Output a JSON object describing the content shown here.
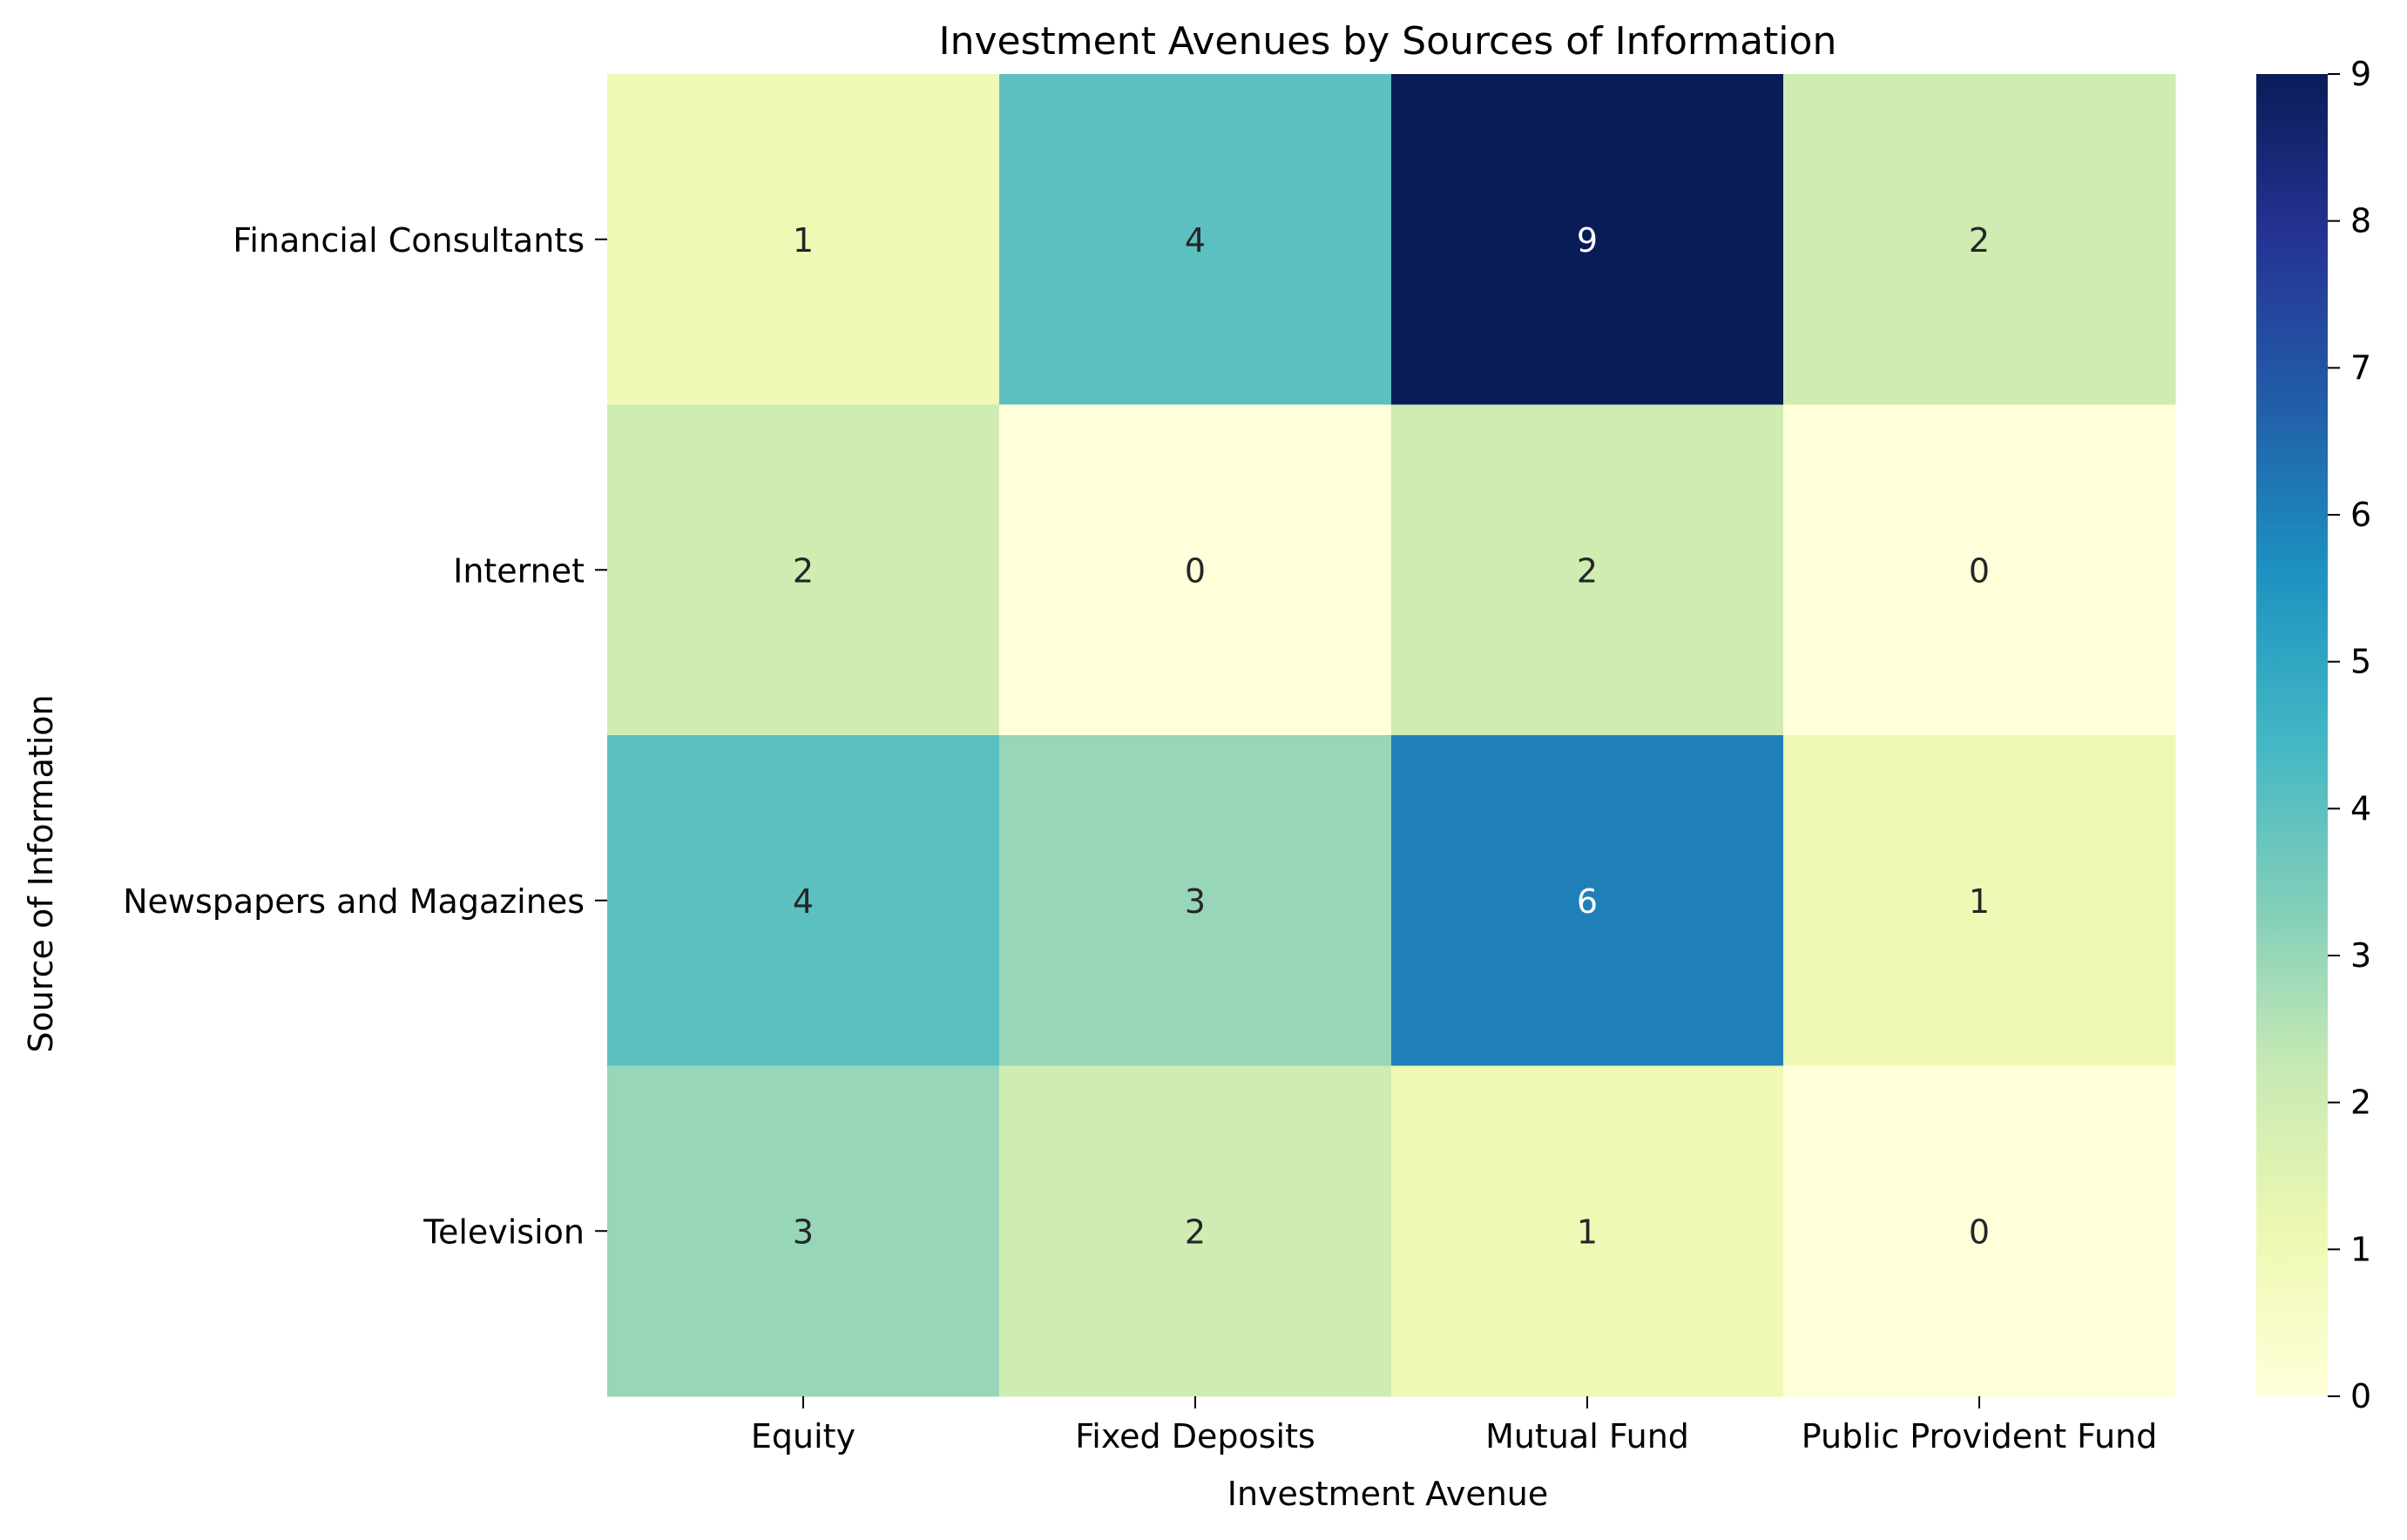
{
  "chart_data": {
    "type": "heatmap",
    "title": "Investment Avenues by Sources of Information",
    "xlabel": "Investment Avenue",
    "ylabel": "Source of Information",
    "x_categories": [
      "Equity",
      "Fixed Deposits",
      "Mutual Fund",
      "Public Provident Fund"
    ],
    "y_categories": [
      "Financial Consultants",
      "Internet",
      "Newspapers and Magazines",
      "Television"
    ],
    "values": [
      [
        1,
        4,
        9,
        2
      ],
      [
        2,
        0,
        2,
        0
      ],
      [
        4,
        3,
        6,
        1
      ],
      [
        3,
        2,
        1,
        0
      ]
    ],
    "colorbar": {
      "colormap": "YlGnBu",
      "vmin": 0,
      "vmax": 9,
      "ticks": [
        "0",
        "1",
        "2",
        "3",
        "4",
        "5",
        "6",
        "7",
        "8",
        "9"
      ]
    },
    "annotations": true,
    "grid": false
  }
}
